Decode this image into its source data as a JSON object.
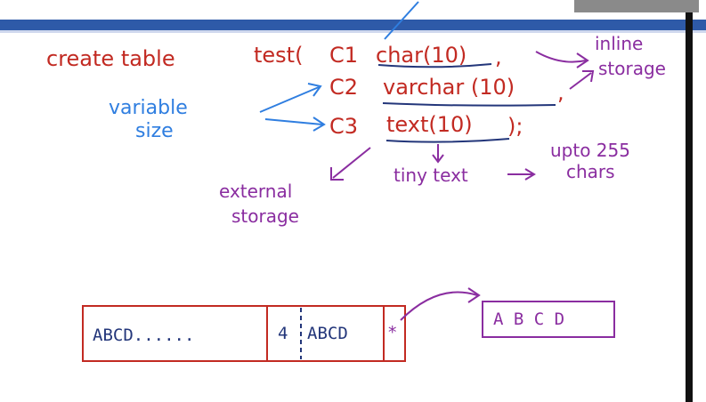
{
  "sql": {
    "create_table": "create table",
    "table_decl": "test(",
    "c1": "C1",
    "char_type": "char(10)",
    "c1_comma": ",",
    "c2": "C2",
    "varchar_type": "varchar (10)",
    "c2_comma": ",",
    "c3": "C3",
    "text_type": "text(10)",
    "close": ");"
  },
  "annotations": {
    "variable_size_line1": "variable",
    "variable_size_line2": "size",
    "inline_storage_line1": "inline",
    "inline_storage_line2": "storage",
    "external_storage_line1": "external",
    "external_storage_line2": "storage",
    "tiny_text": "tiny text",
    "upto_line1": "upto 255",
    "upto_line2": "chars"
  },
  "row_layout": {
    "fixed_cell": "ABCD......",
    "length_prefix": "4",
    "var_cell": "ABCD",
    "pointer_symbol": "*"
  },
  "external_block": {
    "content": "A B C D"
  },
  "colors": {
    "red": "#c22a22",
    "blue": "#2f7ee0",
    "purple": "#8a2da0",
    "navy": "#23367a",
    "header_band": "#2e5aa8",
    "right_bar": "#111111"
  }
}
